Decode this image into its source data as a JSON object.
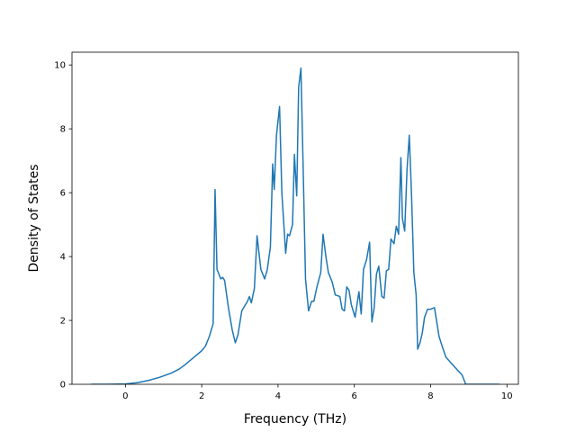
{
  "chart_data": {
    "type": "line",
    "title": "",
    "xlabel": "Frequency (THz)",
    "ylabel": "Density of States",
    "xlim": [
      -1.4,
      10.3
    ],
    "ylim": [
      0,
      10.4
    ],
    "xticks": [
      0,
      2,
      4,
      6,
      8,
      10
    ],
    "xtick_labels": [
      "0",
      "2",
      "4",
      "6",
      "8",
      "10"
    ],
    "yticks": [
      0,
      2,
      4,
      6,
      8,
      10
    ],
    "ytick_labels": [
      "0",
      "2",
      "4",
      "6",
      "8",
      "10"
    ],
    "grid": false,
    "legend": "none",
    "line_color": "#1f77b4",
    "series": [
      {
        "x": [
          -0.9,
          -0.5,
          0.0,
          0.3,
          0.6,
          0.9,
          1.2,
          1.4,
          1.55,
          1.6,
          1.8,
          2.0,
          2.1,
          2.2,
          2.3,
          2.35,
          2.4,
          2.5,
          2.55,
          2.6,
          2.7,
          2.8,
          2.88,
          2.95,
          3.05,
          3.2,
          3.25,
          3.3,
          3.38,
          3.45,
          3.55,
          3.65,
          3.72,
          3.8,
          3.86,
          3.9,
          3.96,
          4.04,
          4.1,
          4.2,
          4.25,
          4.3,
          4.38,
          4.43,
          4.49,
          4.54,
          4.6,
          4.66,
          4.72,
          4.8,
          4.88,
          4.94,
          5.02,
          5.12,
          5.18,
          5.26,
          5.32,
          5.42,
          5.5,
          5.62,
          5.68,
          5.74,
          5.8,
          5.86,
          5.92,
          6.02,
          6.12,
          6.18,
          6.24,
          6.32,
          6.4,
          6.46,
          6.52,
          6.58,
          6.64,
          6.72,
          6.78,
          6.84,
          6.9,
          6.96,
          7.04,
          7.1,
          7.16,
          7.22,
          7.26,
          7.32,
          7.38,
          7.44,
          7.5,
          7.56,
          7.62,
          7.66,
          7.72,
          7.78,
          7.84,
          7.92,
          8.0,
          8.1,
          8.22,
          8.3,
          8.4,
          8.55,
          8.7,
          8.82,
          8.92,
          8.95,
          9.2,
          9.5,
          9.8
        ],
        "y": [
          0,
          0,
          0.01,
          0.05,
          0.12,
          0.22,
          0.35,
          0.47,
          0.6,
          0.65,
          0.85,
          1.05,
          1.2,
          1.5,
          1.9,
          6.1,
          3.6,
          3.3,
          3.35,
          3.25,
          2.4,
          1.7,
          1.3,
          1.55,
          2.3,
          2.6,
          2.75,
          2.55,
          3.0,
          4.65,
          3.6,
          3.3,
          3.6,
          4.3,
          6.9,
          6.1,
          7.8,
          8.7,
          6.0,
          4.1,
          4.7,
          4.65,
          5.0,
          7.2,
          5.9,
          9.3,
          9.9,
          6.7,
          3.3,
          2.3,
          2.6,
          2.6,
          3.05,
          3.5,
          4.7,
          3.95,
          3.5,
          3.2,
          2.8,
          2.75,
          2.35,
          2.3,
          3.05,
          2.95,
          2.5,
          2.1,
          2.9,
          2.2,
          3.6,
          3.9,
          4.45,
          1.95,
          2.4,
          3.45,
          3.7,
          2.75,
          2.7,
          3.55,
          3.6,
          4.55,
          4.4,
          4.95,
          4.7,
          7.1,
          5.2,
          4.8,
          6.7,
          7.8,
          5.9,
          3.5,
          2.8,
          1.1,
          1.3,
          1.6,
          2.1,
          2.35,
          2.35,
          2.4,
          1.5,
          1.2,
          0.85,
          0.65,
          0.45,
          0.3,
          0.0,
          0,
          0,
          0,
          0
        ]
      }
    ]
  }
}
